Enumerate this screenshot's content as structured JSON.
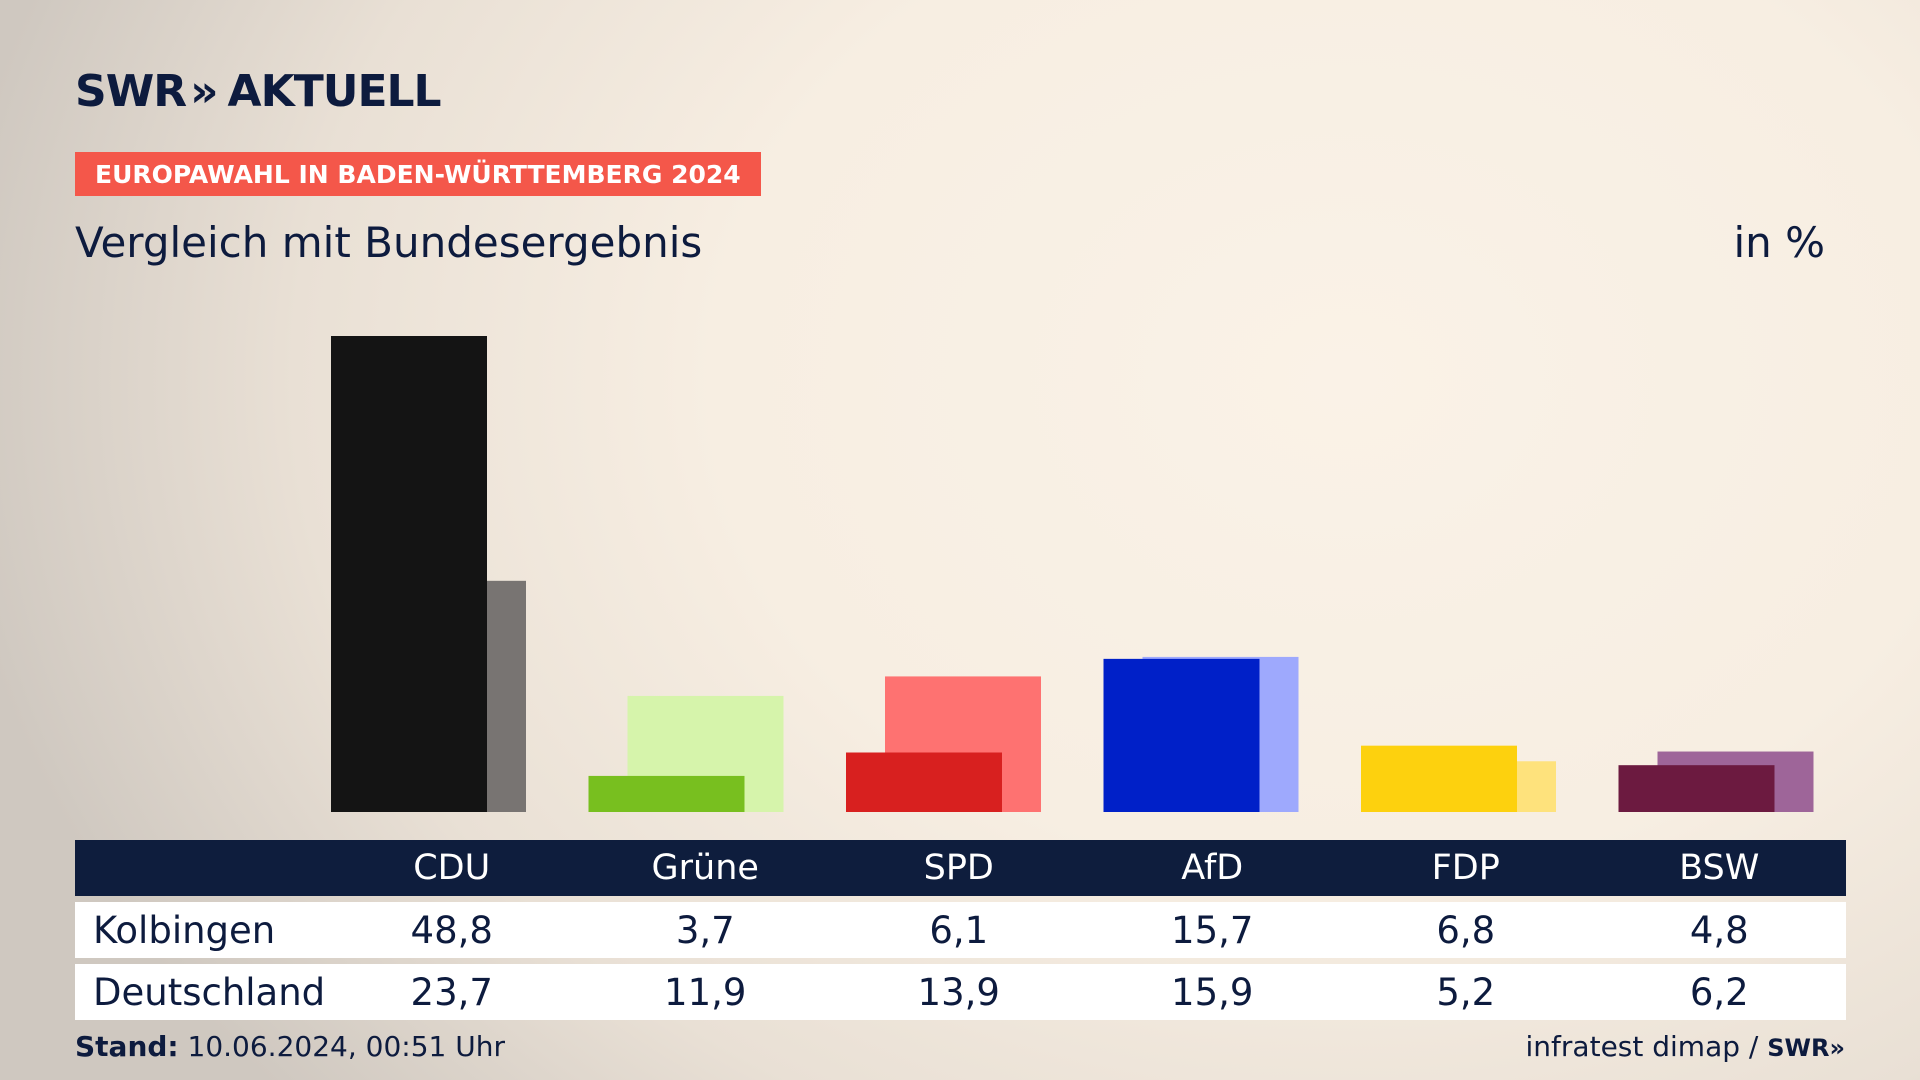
{
  "brand": {
    "logo_text": "SWR",
    "logo_chevrons": "»",
    "logo_suffix": "AKTUELL"
  },
  "header": {
    "kicker": "EUROPAWAHL IN BADEN-WÜRTTEMBERG 2024",
    "subtitle": "Vergleich mit Bundesergebnis",
    "unit": "in %"
  },
  "colors": {
    "kicker_bg": "#f4574a",
    "table_header_bg": "#0e1d3d",
    "text": "#0d1b3e"
  },
  "chart_data": {
    "type": "bar",
    "categories": [
      "CDU",
      "Grüne",
      "SPD",
      "AfD",
      "FDP",
      "BSW"
    ],
    "series": [
      {
        "name": "Kolbingen",
        "values": [
          48.8,
          3.7,
          6.1,
          15.7,
          6.8,
          4.8
        ],
        "colors": [
          "#141414",
          "#78bf1f",
          "#d8201f",
          "#0020c8",
          "#fdd10e",
          "#6c1a40"
        ]
      },
      {
        "name": "Deutschland",
        "values": [
          23.7,
          11.9,
          13.9,
          15.9,
          5.2,
          6.2
        ],
        "colors": [
          "#787472",
          "#d6f4ab",
          "#fe7271",
          "#9ea9fd",
          "#fee27c",
          "#9e6599"
        ]
      }
    ],
    "ylim": [
      0,
      48.8
    ],
    "xlabel": "",
    "ylabel": ""
  },
  "table": {
    "headers": [
      "",
      "CDU",
      "Grüne",
      "SPD",
      "AfD",
      "FDP",
      "BSW"
    ],
    "rows": [
      {
        "label": "Kolbingen",
        "values": [
          "48,8",
          "3,7",
          "6,1",
          "15,7",
          "6,8",
          "4,8"
        ]
      },
      {
        "label": "Deutschland",
        "values": [
          "23,7",
          "11,9",
          "13,9",
          "15,9",
          "5,2",
          "6,2"
        ]
      }
    ]
  },
  "footer": {
    "stand_label": "Stand:",
    "stand_value": " 10.06.2024, 00:51 Uhr",
    "source": "infratest dimap / ",
    "source_brand": "SWR»"
  }
}
